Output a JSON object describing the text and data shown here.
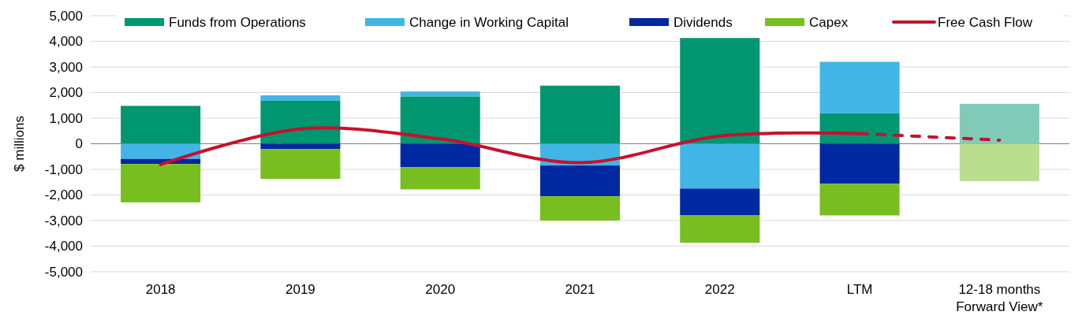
{
  "chart_data": {
    "type": "bar",
    "stacked": true,
    "ylabel": "$ millions",
    "categories": [
      "2018",
      "2019",
      "2020",
      "2021",
      "2022",
      "LTM",
      "12-18 months\nForward View*"
    ],
    "series": [
      {
        "name": "Funds from Operations",
        "color": "#009670",
        "colors": [
          "#009670",
          "#009670",
          "#009670",
          "#009670",
          "#009670",
          "#009670",
          "#80cbb8"
        ],
        "values": [
          1480,
          1680,
          1850,
          2270,
          4130,
          1190,
          1560
        ]
      },
      {
        "name": "Change in Working Capital",
        "color": "#41b6e6",
        "values": [
          -590,
          210,
          190,
          -850,
          -1750,
          2010,
          null
        ]
      },
      {
        "name": "Dividends",
        "color": "#0028a0",
        "values": [
          -200,
          -210,
          -920,
          -1200,
          -1050,
          -1560,
          null
        ]
      },
      {
        "name": "Capex",
        "color": "#78be20",
        "colors": [
          "#78be20",
          "#78be20",
          "#78be20",
          "#78be20",
          "#78be20",
          "#78be20",
          "#bade8e"
        ],
        "values": [
          -1500,
          -1160,
          -860,
          -950,
          -1070,
          -1240,
          -1460
        ]
      },
      {
        "name": "Free Cash Flow",
        "type": "line",
        "color": "#c8102e",
        "line_style": "solid",
        "values": [
          -810,
          580,
          190,
          -740,
          300,
          400,
          null
        ]
      },
      {
        "type": "line",
        "color": "#c8102e",
        "line_style": "dashed",
        "values": [
          null,
          null,
          null,
          null,
          null,
          400,
          140
        ]
      }
    ],
    "ylim": [
      -5000,
      5000
    ],
    "yticks": [
      {
        "value": -5000,
        "label": "-5,000"
      },
      {
        "value": -4000,
        "label": "-4,000"
      },
      {
        "value": -3000,
        "label": "-3,000"
      },
      {
        "value": -2000,
        "label": "-2,000"
      },
      {
        "value": -1000,
        "label": "-1,000"
      },
      0,
      {
        "value": 1000,
        "label": "1,000"
      },
      {
        "value": 2000,
        "label": "2,000"
      },
      {
        "value": 3000,
        "label": "3,000"
      },
      {
        "value": 4000,
        "label": "4,000"
      },
      {
        "value": 5000,
        "label": "5,000"
      }
    ],
    "grid": "y",
    "legend": "top"
  }
}
